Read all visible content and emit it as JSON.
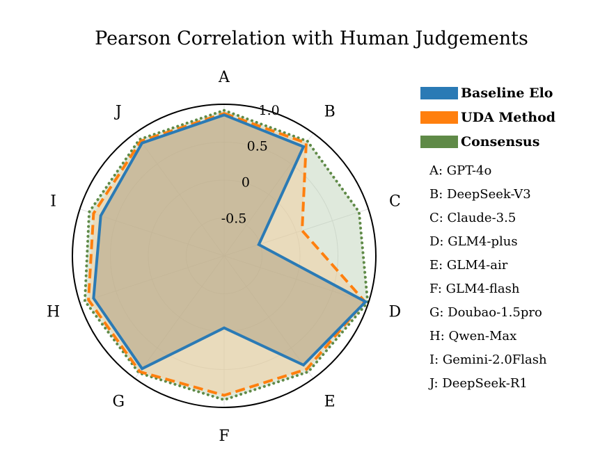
{
  "chart_data": {
    "type": "radar",
    "title": "Pearson Correlation with Human Judgements",
    "axes": [
      "A",
      "B",
      "C",
      "D",
      "E",
      "F",
      "G",
      "H",
      "I",
      "J"
    ],
    "axis_names": [
      "A: GPT-4o",
      "B: DeepSeek-V3",
      "C: Claude-3.5",
      "D: GLM4-plus",
      "E: GLM4-air",
      "F: GLM4-flash",
      "G: Doubao-1.5pro",
      "H: Qwen-Max",
      "I: Gemini-2.0Flash",
      "J: DeepSeek-R1"
    ],
    "rlim": [
      -1.0,
      1.0
    ],
    "rticks": [
      -0.5,
      0,
      0.5,
      1.0
    ],
    "rtick_labels": [
      "-0.5",
      "0",
      "0.5",
      "1.0"
    ],
    "grid": true,
    "series": [
      {
        "name": "Baseline Elo",
        "color": "#2a7ab5",
        "fill": "#a3967a",
        "line": "solid",
        "values": [
          0.86,
          0.78,
          -0.52,
          0.96,
          0.78,
          -0.05,
          0.84,
          0.81,
          0.71,
          0.84
        ]
      },
      {
        "name": "UDA Method",
        "color": "#ff7f0e",
        "fill": "#f7c994",
        "line": "dashed",
        "values": [
          0.88,
          0.84,
          0.08,
          0.95,
          0.85,
          0.84,
          0.89,
          0.88,
          0.81,
          0.87
        ]
      },
      {
        "name": "Consensus",
        "color": "#5f8a47",
        "fill": "#b9cfb1",
        "line": "dotted",
        "values": [
          0.92,
          0.87,
          0.87,
          0.99,
          0.89,
          0.9,
          0.91,
          0.93,
          0.87,
          0.9
        ]
      }
    ],
    "legend_position": "top-right"
  }
}
